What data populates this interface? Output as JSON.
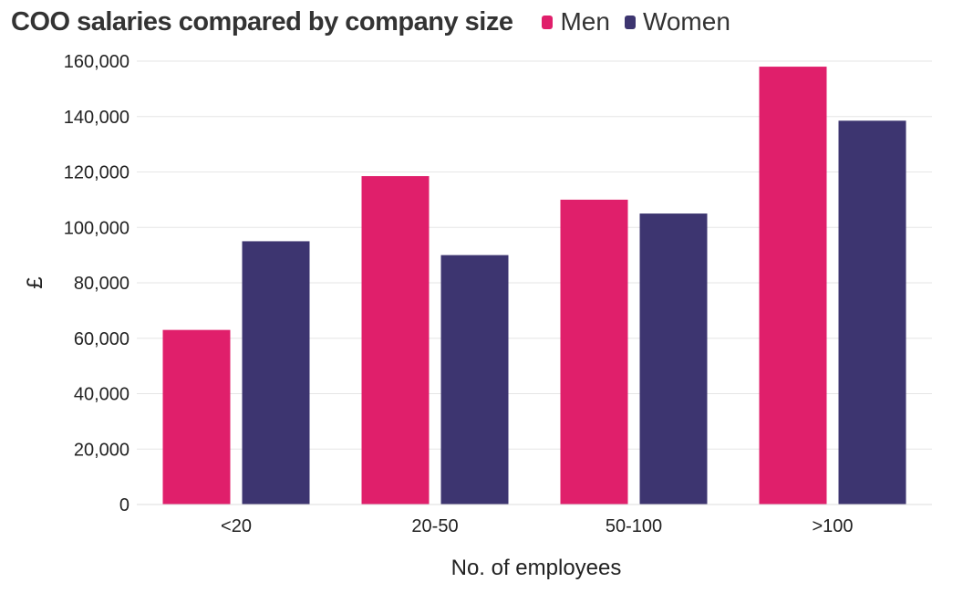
{
  "chart_data": {
    "type": "bar",
    "title": "COO salaries compared by company size",
    "xlabel": "No. of employees",
    "ylabel": "£",
    "categories": [
      "<20",
      "20-50",
      "50-100",
      ">100"
    ],
    "series": [
      {
        "name": "Men",
        "color": "#e01f6b",
        "values": [
          63000,
          118500,
          110000,
          158000
        ]
      },
      {
        "name": "Women",
        "color": "#3d3570",
        "values": [
          95000,
          90000,
          105000,
          138500
        ]
      }
    ],
    "ylim": [
      0,
      160000
    ],
    "yticks": [
      0,
      20000,
      40000,
      60000,
      80000,
      100000,
      120000,
      140000,
      160000
    ],
    "ytick_labels": [
      "0",
      "20,000",
      "40,000",
      "60,000",
      "80,000",
      "100,000",
      "120,000",
      "140,000",
      "160,000"
    ],
    "grid": true,
    "legend": "top"
  }
}
